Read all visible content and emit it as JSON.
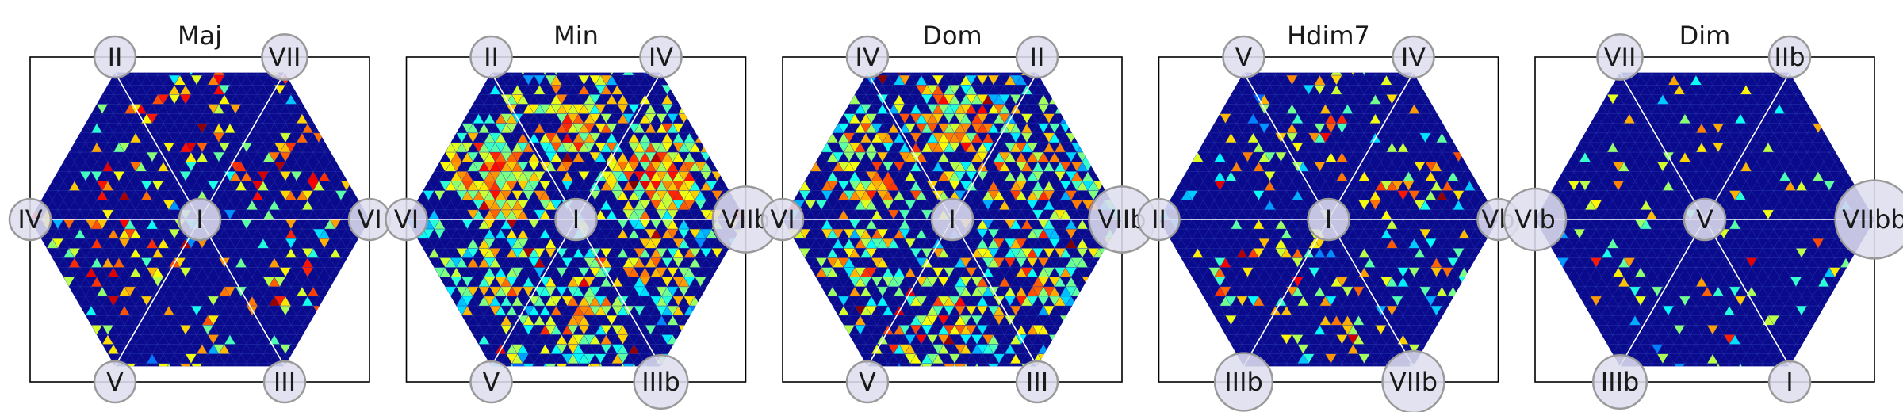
{
  "chart_data": [
    {
      "type": "heatmap",
      "title": "Maj",
      "grid_shape": "hexagon",
      "center_label": "I",
      "nodes": [
        {
          "label": "IV",
          "position": "left",
          "size": 1.0
        },
        {
          "label": "II",
          "position": "top-left",
          "size": 1.0
        },
        {
          "label": "VII",
          "position": "top-right",
          "size": 1.1
        },
        {
          "label": "VI",
          "position": "right",
          "size": 1.0
        },
        {
          "label": "III",
          "position": "bottom-right",
          "size": 1.0
        },
        {
          "label": "V",
          "position": "bottom-left",
          "size": 1.0
        }
      ],
      "colormap": "jet",
      "density": 0.13,
      "intensity": 0.55
    },
    {
      "type": "heatmap",
      "title": "Min",
      "grid_shape": "hexagon",
      "center_label": "I",
      "nodes": [
        {
          "label": "VI",
          "position": "left",
          "size": 1.0
        },
        {
          "label": "II",
          "position": "top-left",
          "size": 1.0
        },
        {
          "label": "IV",
          "position": "top-right",
          "size": 1.0
        },
        {
          "label": "VIIb",
          "position": "right",
          "size": 1.6
        },
        {
          "label": "IIIb",
          "position": "bottom-right",
          "size": 1.3
        },
        {
          "label": "V",
          "position": "bottom-left",
          "size": 1.0
        }
      ],
      "colormap": "jet",
      "density": 0.45,
      "intensity": 0.45
    },
    {
      "type": "heatmap",
      "title": "Dom",
      "grid_shape": "hexagon",
      "center_label": "I",
      "nodes": [
        {
          "label": "VI",
          "position": "left",
          "size": 1.0
        },
        {
          "label": "IV",
          "position": "top-left",
          "size": 1.0
        },
        {
          "label": "II",
          "position": "top-right",
          "size": 1.0
        },
        {
          "label": "VIIb",
          "position": "right",
          "size": 1.6
        },
        {
          "label": "III",
          "position": "bottom-right",
          "size": 1.0
        },
        {
          "label": "V",
          "position": "bottom-left",
          "size": 1.0
        }
      ],
      "colormap": "jet",
      "density": 0.42,
      "intensity": 0.5
    },
    {
      "type": "heatmap",
      "title": "Hdim7",
      "grid_shape": "hexagon",
      "center_label": "I",
      "nodes": [
        {
          "label": "II",
          "position": "left",
          "size": 1.0
        },
        {
          "label": "V",
          "position": "top-left",
          "size": 1.0
        },
        {
          "label": "IV",
          "position": "top-right",
          "size": 1.0
        },
        {
          "label": "Vb",
          "position": "right",
          "size": 1.0
        },
        {
          "label": "VIIb",
          "position": "bottom-right",
          "size": 1.5
        },
        {
          "label": "IIIb",
          "position": "bottom-left",
          "size": 1.4
        }
      ],
      "colormap": "jet",
      "density": 0.15,
      "intensity": 0.5
    },
    {
      "type": "heatmap",
      "title": "Dim",
      "grid_shape": "hexagon",
      "center_label": "V",
      "nodes": [
        {
          "label": "VIb",
          "position": "left",
          "size": 1.5
        },
        {
          "label": "VII",
          "position": "top-left",
          "size": 1.1
        },
        {
          "label": "IIb",
          "position": "top-right",
          "size": 1.0
        },
        {
          "label": "VIIbb",
          "position": "right",
          "size": 1.9
        },
        {
          "label": "I",
          "position": "bottom-right",
          "size": 1.0
        },
        {
          "label": "IIIb",
          "position": "bottom-left",
          "size": 1.3
        }
      ],
      "colormap": "jet",
      "density": 0.06,
      "intensity": 0.45
    }
  ],
  "colors": {
    "background_cell": "#0a0a8c",
    "grid_line": "#2a3cb0",
    "spoke": "#ffffff",
    "node_fill": "#dedeee",
    "node_stroke": "#9a9a9a"
  }
}
